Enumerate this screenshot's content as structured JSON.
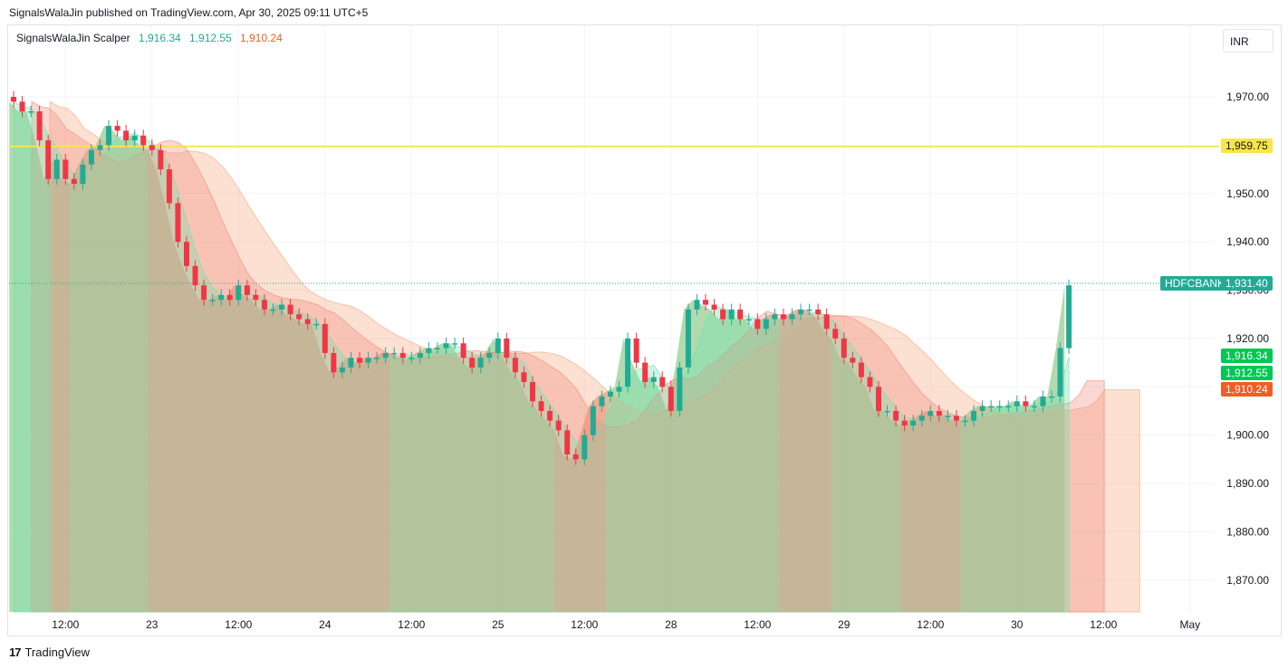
{
  "header": {
    "publisher_line": "SignalsWalaJin published on TradingView.com, Apr 30, 2025 09:11 UTC+5"
  },
  "indicator": {
    "name": "SignalsWalaJin Scalper",
    "values": [
      "1,916.34",
      "1,912.55",
      "1,910.24"
    ]
  },
  "currency_button": "INR",
  "footer": {
    "brand": "TradingView"
  },
  "colors": {
    "up": "#22ab94",
    "down": "#f23645",
    "level_line": "#f7e54a",
    "bull_zone": "#a8d7a5",
    "bear_zone": "#f4a395"
  },
  "tags": {
    "symbol": "HDFCBANK",
    "last_price": "1,931.40",
    "level": "1,959.75",
    "ind1": "1,916.34",
    "ind2": "1,912.55",
    "ind3": "1,910.24"
  },
  "chart_data": {
    "type": "candlestick",
    "symbol": "HDFCBANK",
    "currency": "INR",
    "y_ticks": [
      1970,
      1950,
      1940,
      1930,
      1920,
      1910,
      1900,
      1890,
      1880,
      1870
    ],
    "y_tick_labels": [
      "1,970.00",
      "1,950.00",
      "1,940.00",
      "1,930.00",
      "1,920.00",
      "1,910.00",
      "1,900.00",
      "1,890.00",
      "1,880.00",
      "1,870.00"
    ],
    "ylim": [
      1863.5,
      1980
    ],
    "x_ticks": [
      {
        "label": "12:00",
        "bar": 6
      },
      {
        "label": "23",
        "bar": 16
      },
      {
        "label": "12:00",
        "bar": 26
      },
      {
        "label": "24",
        "bar": 36
      },
      {
        "label": "12:00",
        "bar": 46
      },
      {
        "label": "25",
        "bar": 56
      },
      {
        "label": "12:00",
        "bar": 66
      },
      {
        "label": "28",
        "bar": 76
      },
      {
        "label": "12:00",
        "bar": 86
      },
      {
        "label": "29",
        "bar": 96
      },
      {
        "label": "12:00",
        "bar": 106
      },
      {
        "label": "30",
        "bar": 116
      },
      {
        "label": "12:00",
        "bar": 126
      },
      {
        "label": "May",
        "bar": 136
      }
    ],
    "horizontal_level": 1959.75,
    "last_price": 1931.4,
    "closes": [
      1969,
      1967,
      1967,
      1961,
      1953,
      1957,
      1953,
      1952,
      1956,
      1959,
      1960,
      1964,
      1963,
      1961,
      1962,
      1960,
      1959,
      1955,
      1948,
      1940,
      1935,
      1931,
      1928,
      1928,
      1929,
      1928,
      1931,
      1929,
      1928,
      1926,
      1926,
      1927,
      1925,
      1924,
      1923,
      1923,
      1917,
      1913,
      1914,
      1916,
      1915,
      1916,
      1916,
      1917,
      1917,
      1916,
      1916,
      1917,
      1918,
      1918,
      1919,
      1919,
      1916,
      1914,
      1916,
      1917,
      1920,
      1916,
      1913,
      1911,
      1907,
      1905,
      1903,
      1901,
      1896,
      1895,
      1900,
      1906,
      1908,
      1909,
      1910,
      1920,
      1915,
      1911,
      1912,
      1910,
      1905,
      1914,
      1926,
      1928,
      1927,
      1926,
      1924,
      1926,
      1924,
      1924,
      1922,
      1924,
      1925,
      1924,
      1925,
      1926,
      1926,
      1925,
      1922,
      1920,
      1916,
      1915,
      1912,
      1910,
      1905,
      1905,
      1903,
      1902,
      1903,
      1904,
      1905,
      1904,
      1904,
      1903,
      1903,
      1905,
      1906,
      1906,
      1906,
      1906,
      1907,
      1906,
      1906,
      1908,
      1908,
      1918,
      1931
    ],
    "bull_zones": [
      [
        0,
        5
      ],
      [
        7,
        16
      ],
      [
        44,
        63
      ],
      [
        69,
        89
      ],
      [
        95,
        103
      ],
      [
        110,
        122
      ]
    ],
    "bear_zones": [
      [
        5,
        7
      ],
      [
        16,
        44
      ],
      [
        63,
        69
      ],
      [
        89,
        95
      ],
      [
        103,
        110
      ]
    ],
    "series": [
      {
        "name": "",
        "values_last": 1916.34,
        "color": "#22ab94"
      },
      {
        "name": "",
        "values_last": 1912.55,
        "color": "#22ab94"
      },
      {
        "name": "",
        "values_last": 1910.24,
        "color": "#f25d23"
      }
    ]
  }
}
